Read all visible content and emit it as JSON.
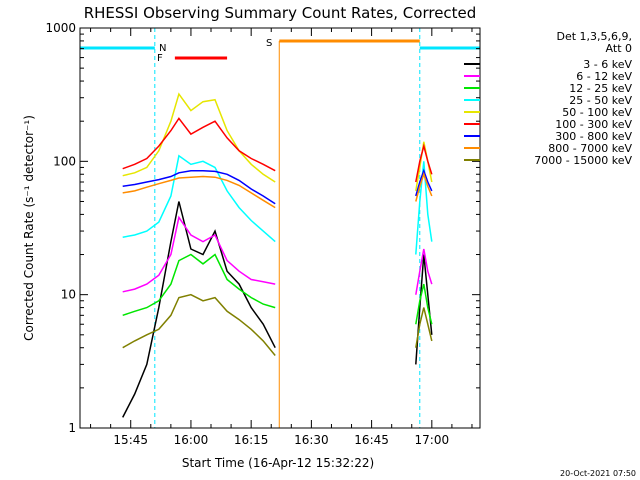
{
  "chart_data": {
    "type": "line",
    "title": "RHESSI Observing Summary Count Rates, Corrected",
    "xlabel": "Start Time (16-Apr-12 15:32:22)",
    "ylabel": "Corrected Count Rate (s⁻¹ detector⁻¹)",
    "yscale": "log",
    "ylim": [
      1,
      1000
    ],
    "xlim": [
      "15:32:22",
      "17:12:00"
    ],
    "x_ticks": [
      "15:45",
      "16:00",
      "16:15",
      "16:30",
      "16:45",
      "17:00"
    ],
    "y_ticks": [
      "1",
      "10",
      "100",
      "1000"
    ],
    "grid": false,
    "legend_position": "top-right outside",
    "legend_header": [
      "Det 1,3,5,6,9,",
      "Att 0"
    ],
    "timestamp": "20-Oct-2021 07:50",
    "state_labels": {
      "N": "N",
      "F": "F",
      "S": "S"
    },
    "colors": {
      "night": "#00e6ff",
      "flare": "#ff0000",
      "saa": "#ff8c00"
    },
    "intervals": {
      "night": [
        [
          "15:32:22",
          "15:51:00"
        ],
        [
          "16:57:00",
          "17:12:00"
        ]
      ],
      "saa": [
        "16:22:00",
        "16:57:00"
      ],
      "flare": [
        "15:56:00",
        "16:09:00"
      ]
    },
    "series": [
      {
        "name": "3 - 6 keV",
        "color": "#000000",
        "x": [
          "15:43",
          "15:46",
          "15:49",
          "15:52",
          "15:55",
          "15:57",
          "16:00",
          "16:03",
          "16:06",
          "16:09",
          "16:12",
          "16:15",
          "16:18",
          "16:21",
          "16:56",
          "16:57",
          "16:58",
          "16:59",
          "17:00"
        ],
        "values": [
          1.2,
          1.8,
          3.0,
          8.0,
          25.0,
          50.0,
          22.0,
          20.0,
          30.0,
          15.0,
          12.0,
          8.0,
          6.0,
          4.0,
          3.0,
          8.0,
          20.0,
          10.0,
          5.0
        ]
      },
      {
        "name": "6 - 12 keV",
        "color": "#ff00ff",
        "x": [
          "15:43",
          "15:46",
          "15:49",
          "15:52",
          "15:55",
          "15:57",
          "16:00",
          "16:03",
          "16:06",
          "16:09",
          "16:12",
          "16:15",
          "16:18",
          "16:21",
          "16:56",
          "16:57",
          "16:58",
          "16:59",
          "17:00"
        ],
        "values": [
          10.5,
          11.0,
          12.0,
          14.0,
          20.0,
          38.0,
          28.0,
          25.0,
          28.0,
          18.0,
          15.0,
          13.0,
          12.5,
          12.0,
          10.0,
          15.0,
          22.0,
          15.0,
          12.0
        ]
      },
      {
        "name": "12 - 25 keV",
        "color": "#00e600",
        "x": [
          "15:43",
          "15:46",
          "15:49",
          "15:52",
          "15:55",
          "15:57",
          "16:00",
          "16:03",
          "16:06",
          "16:09",
          "16:12",
          "16:15",
          "16:18",
          "16:21",
          "16:56",
          "16:57",
          "16:58",
          "16:59",
          "17:00"
        ],
        "values": [
          7.0,
          7.5,
          8.0,
          9.0,
          12.0,
          18.0,
          20.0,
          17.0,
          20.0,
          13.0,
          11.0,
          9.5,
          8.5,
          8.0,
          6.0,
          9.0,
          12.0,
          8.0,
          6.0
        ]
      },
      {
        "name": "25 - 50 keV",
        "color": "#00ffff",
        "x": [
          "15:43",
          "15:46",
          "15:49",
          "15:52",
          "15:55",
          "15:57",
          "16:00",
          "16:03",
          "16:06",
          "16:09",
          "16:12",
          "16:15",
          "16:18",
          "16:21",
          "16:56",
          "16:57",
          "16:58",
          "16:59",
          "17:00"
        ],
        "values": [
          27.0,
          28.0,
          30.0,
          35.0,
          55.0,
          110.0,
          95.0,
          100.0,
          90.0,
          60.0,
          45.0,
          36.0,
          30.0,
          25.0,
          20.0,
          50.0,
          100.0,
          40.0,
          25.0
        ]
      },
      {
        "name": "50 - 100 keV",
        "color": "#e6e600",
        "x": [
          "15:43",
          "15:46",
          "15:49",
          "15:52",
          "15:55",
          "15:57",
          "16:00",
          "16:03",
          "16:06",
          "16:09",
          "16:12",
          "16:15",
          "16:18",
          "16:21",
          "16:56",
          "16:57",
          "16:58",
          "16:59",
          "17:00"
        ],
        "values": [
          78.0,
          82.0,
          90.0,
          120.0,
          200.0,
          320.0,
          240.0,
          280.0,
          290.0,
          170.0,
          120.0,
          95.0,
          80.0,
          70.0,
          60.0,
          90.0,
          140.0,
          100.0,
          70.0
        ]
      },
      {
        "name": "100 - 300 keV",
        "color": "#ff0000",
        "x": [
          "15:43",
          "15:46",
          "15:49",
          "15:52",
          "15:55",
          "15:57",
          "16:00",
          "16:03",
          "16:06",
          "16:09",
          "16:12",
          "16:15",
          "16:18",
          "16:21",
          "16:56",
          "16:57",
          "16:58",
          "16:59",
          "17:00"
        ],
        "values": [
          88.0,
          95.0,
          105.0,
          130.0,
          170.0,
          210.0,
          160.0,
          180.0,
          200.0,
          150.0,
          120.0,
          105.0,
          95.0,
          85.0,
          70.0,
          100.0,
          130.0,
          100.0,
          80.0
        ]
      },
      {
        "name": "300 - 800 keV",
        "color": "#0000ff",
        "x": [
          "15:43",
          "15:46",
          "15:49",
          "15:52",
          "15:55",
          "15:57",
          "16:00",
          "16:03",
          "16:06",
          "16:09",
          "16:12",
          "16:15",
          "16:18",
          "16:21",
          "16:56",
          "16:57",
          "16:58",
          "16:59",
          "17:00"
        ],
        "values": [
          65.0,
          67.0,
          70.0,
          73.0,
          77.0,
          82.0,
          85.0,
          85.0,
          84.0,
          80.0,
          72.0,
          62.0,
          55.0,
          48.0,
          55.0,
          70.0,
          85.0,
          70.0,
          60.0
        ]
      },
      {
        "name": "800 - 7000 keV",
        "color": "#ff8c00",
        "x": [
          "15:43",
          "15:46",
          "15:49",
          "15:52",
          "15:55",
          "15:57",
          "16:00",
          "16:03",
          "16:06",
          "16:09",
          "16:12",
          "16:15",
          "16:18",
          "16:21",
          "16:56",
          "16:57",
          "16:58",
          "16:59",
          "17:00"
        ],
        "values": [
          58.0,
          60.0,
          64.0,
          68.0,
          72.0,
          75.0,
          76.0,
          77.0,
          76.0,
          72.0,
          66.0,
          58.0,
          51.0,
          45.0,
          50.0,
          65.0,
          80.0,
          65.0,
          55.0
        ]
      },
      {
        "name": "7000 - 15000 keV",
        "color": "#808000",
        "x": [
          "15:43",
          "15:46",
          "15:49",
          "15:52",
          "15:55",
          "15:57",
          "16:00",
          "16:03",
          "16:06",
          "16:09",
          "16:12",
          "16:15",
          "16:18",
          "16:21",
          "16:56",
          "16:57",
          "16:58",
          "16:59",
          "17:00"
        ],
        "values": [
          4.0,
          4.5,
          5.0,
          5.5,
          7.0,
          9.5,
          10.0,
          9.0,
          9.5,
          7.5,
          6.5,
          5.5,
          4.5,
          3.5,
          4.0,
          6.0,
          8.0,
          6.0,
          4.5
        ]
      }
    ]
  }
}
